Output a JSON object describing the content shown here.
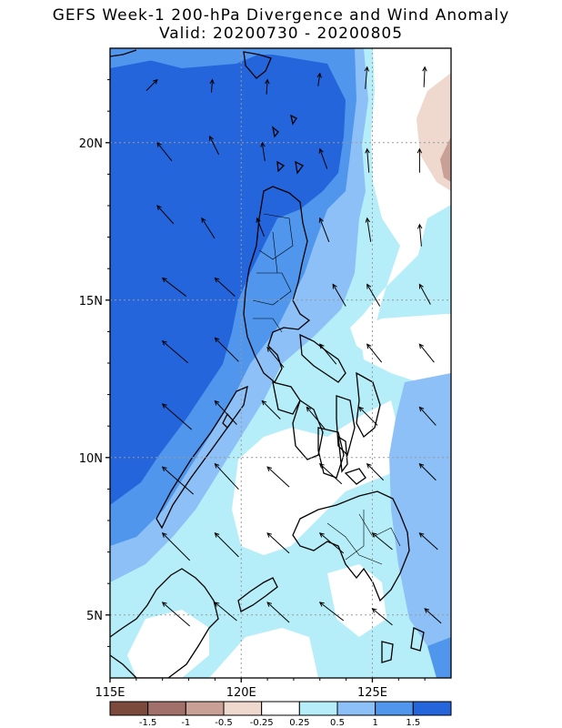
{
  "title_line1": "GEFS Week-1 200-hPa Divergence and Wind Anomaly",
  "title_line2": "Valid: 20200730 - 20200805",
  "map": {
    "lon_range": [
      115,
      128
    ],
    "lat_range": [
      3,
      23
    ],
    "lon_ticks": [
      "115E",
      "120E",
      "125E"
    ],
    "lat_ticks": [
      "5N",
      "10N",
      "15N",
      "20N"
    ],
    "grid": "dotted"
  },
  "colorbar": {
    "labels": [
      "-1.5",
      "-1",
      "-0.5",
      "-0.25",
      "0.25",
      "0.5",
      "1",
      "1.5"
    ],
    "colors": [
      "#7b4a3c",
      "#a2706a",
      "#c8a095",
      "#efd8ce",
      "#ffffff",
      "#b5eef8",
      "#8cc0f6",
      "#4f96ec",
      "#2565dc"
    ]
  }
}
